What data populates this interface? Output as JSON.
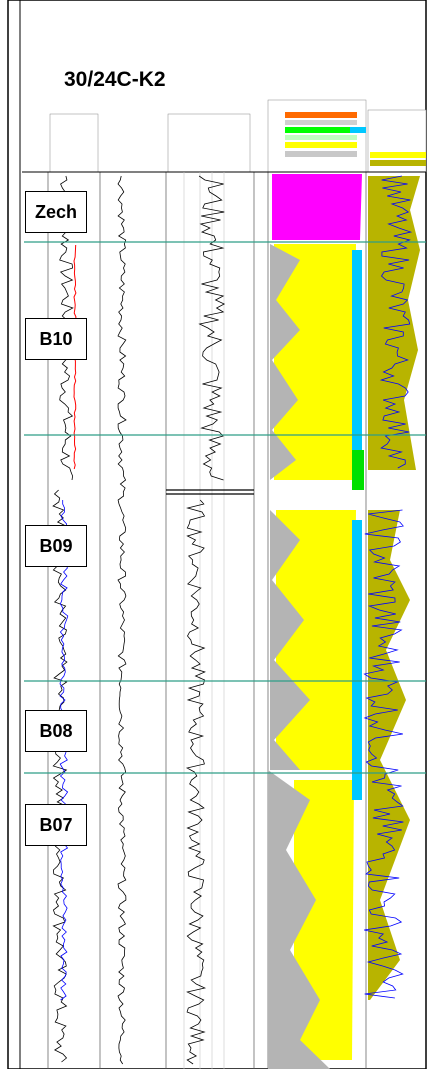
{
  "well_title": "30/24C-K2",
  "zones": [
    {
      "label": "Zech"
    },
    {
      "label": "B10"
    },
    {
      "label": "B09"
    },
    {
      "label": "B08"
    },
    {
      "label": "B07"
    }
  ],
  "colors": {
    "frame": "#000000",
    "zone_boundary": "#2e9e86",
    "lithology_fill": "#ffff00",
    "evaporite_fill": "#ff00ff",
    "shale_fill": "#b4b4b4",
    "sonic_fill": "#b8b400",
    "water_fill": "#00c8ff",
    "green_fill": "#00e000",
    "log_curve": "#000000",
    "blue_curve": "#0000ff",
    "red_curve": "#ff0000"
  }
}
